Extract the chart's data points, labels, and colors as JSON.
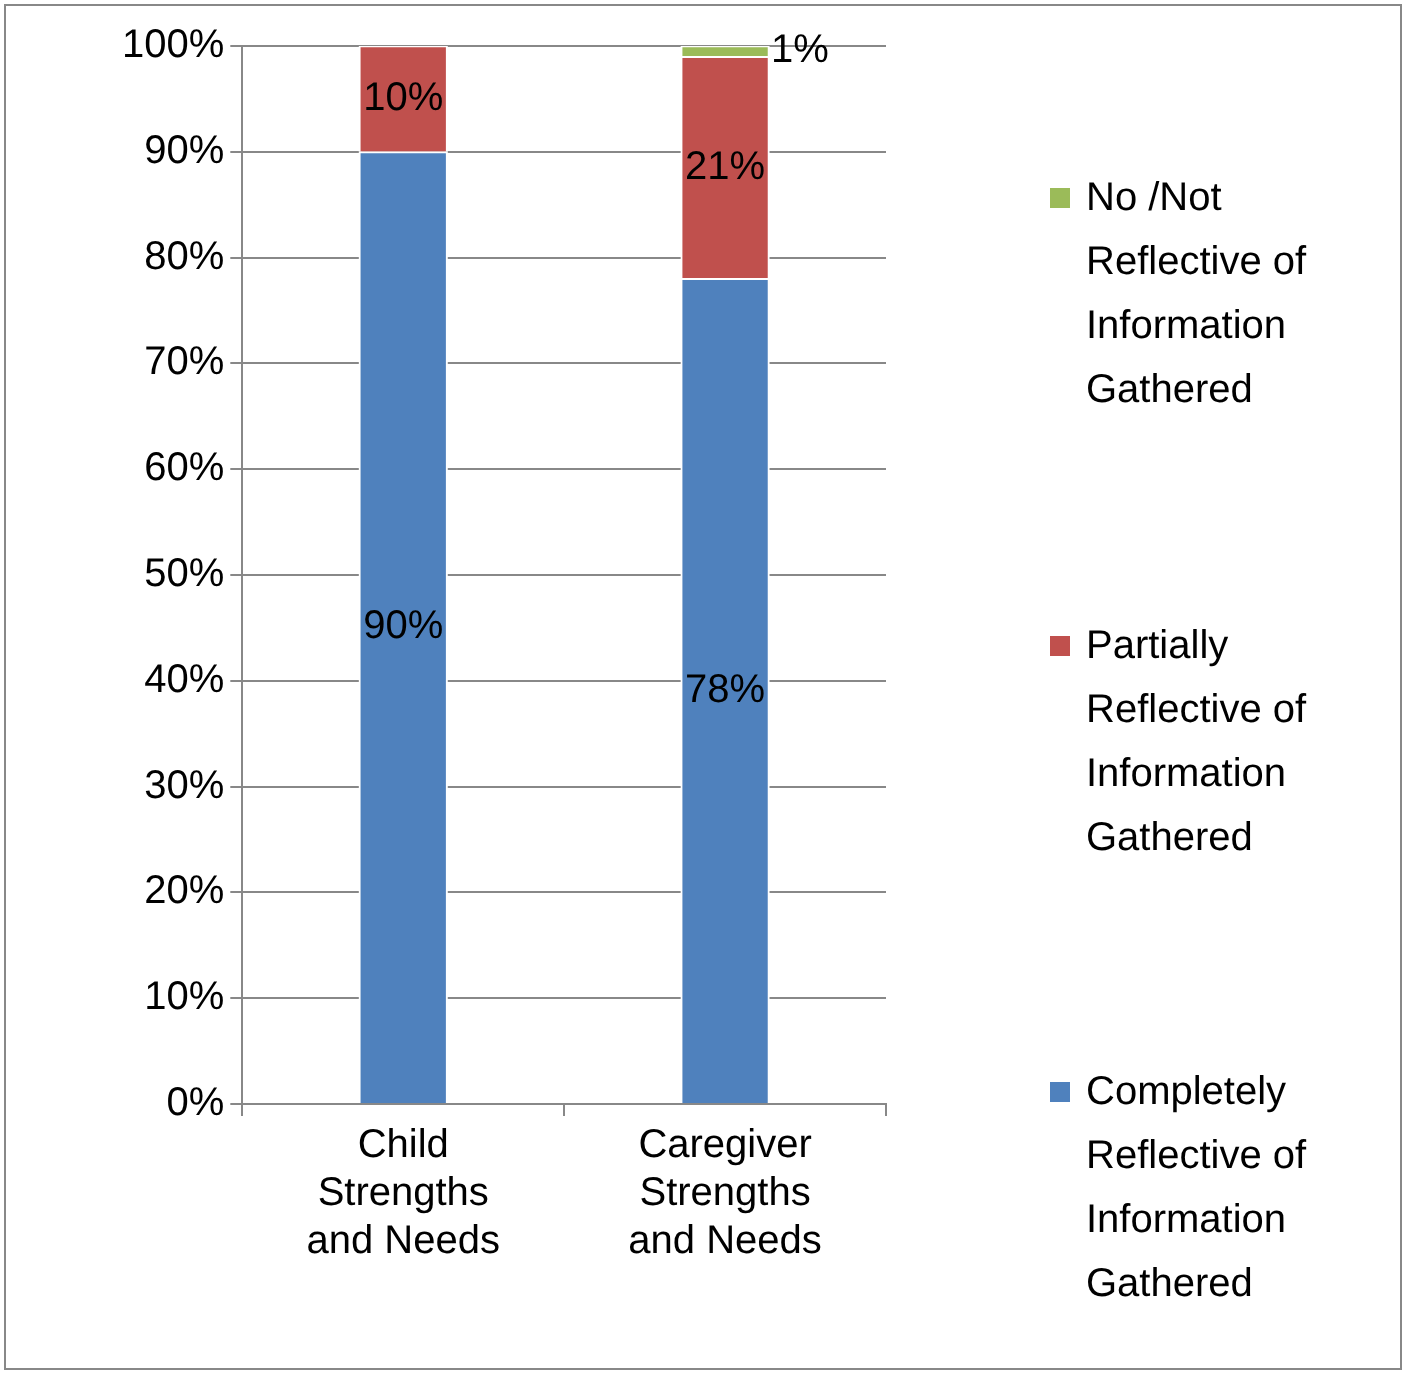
{
  "chart_data": {
    "type": "bar",
    "stacked": true,
    "categories": [
      "Child Strengths and Needs",
      "Caregiver Strengths and Needs"
    ],
    "series": [
      {
        "name": "Completely Reflective of Information Gathered",
        "color": "#4f81bd",
        "values": [
          90,
          78
        ],
        "value_labels": [
          "90%",
          "78%"
        ]
      },
      {
        "name": "Partially Reflective of Information Gathered",
        "color": "#c0504d",
        "values": [
          10,
          21
        ],
        "value_labels": [
          "10%",
          "21%"
        ]
      },
      {
        "name": "No /Not Reflective of Information Gathered",
        "color": "#9bbb59",
        "values": [
          null,
          1
        ],
        "value_labels": [
          null,
          "1%"
        ]
      }
    ],
    "ylim": [
      0,
      100
    ],
    "yticks": [
      {
        "value": 0,
        "label": "0%"
      },
      {
        "value": 10,
        "label": "10%"
      },
      {
        "value": 20,
        "label": "20%"
      },
      {
        "value": 30,
        "label": "30%"
      },
      {
        "value": 40,
        "label": "40%"
      },
      {
        "value": 50,
        "label": "50%"
      },
      {
        "value": 60,
        "label": "60%"
      },
      {
        "value": 70,
        "label": "70%"
      },
      {
        "value": 80,
        "label": "80%"
      },
      {
        "value": 90,
        "label": "90%"
      },
      {
        "value": 100,
        "label": "100%"
      }
    ],
    "grid": "y",
    "legend": "right"
  }
}
